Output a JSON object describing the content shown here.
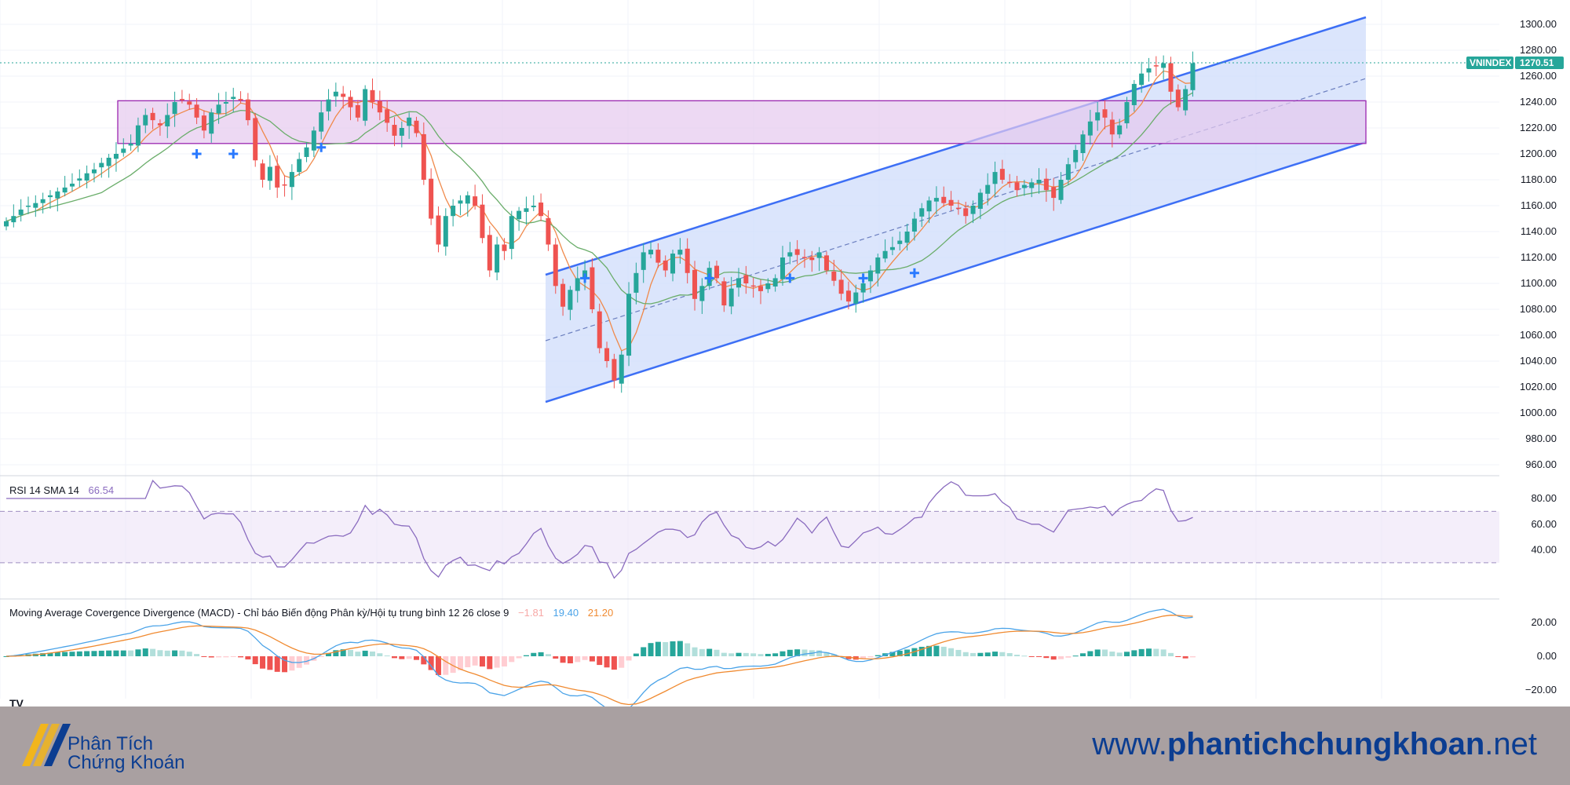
{
  "symbol": "VNINDEX",
  "last_price": "1270.51",
  "colors": {
    "up": "#26a69a",
    "down": "#ef5350",
    "ma_fast": "#f0894a",
    "ma_slow": "#6aad6a",
    "channel_line": "#3d6ff5",
    "channel_fill": "#cfdcfb",
    "zone_fill": "#e6c9ee",
    "zone_border": "#9b27b0",
    "rsi_line": "#8a6bbf",
    "macd_line": "#4aa3e8",
    "signal_line": "#f08a30",
    "footer_bg": "#a9a0a1",
    "brand": "#0b3d91"
  },
  "rsi": {
    "label": "RSI 14 SMA 14",
    "value": "66.54",
    "ticks": [
      "80.00",
      "60.00",
      "40.00"
    ]
  },
  "macd": {
    "label": "Moving Average Covergence Divergence (MACD) - Chỉ báo Biến động Phân kỳ/Hội tụ trung bình 12 26 close 9",
    "hist_value": "−1.81",
    "macd_value": "19.40",
    "signal_value": "21.20",
    "ticks": [
      "20.00",
      "0.00",
      "−20.00"
    ]
  },
  "price_ticks": [
    "1300.00",
    "1280.00",
    "1260.00",
    "1240.00",
    "1220.00",
    "1200.00",
    "1180.00",
    "1160.00",
    "1140.00",
    "1120.00",
    "1100.00",
    "1080.00",
    "1060.00",
    "1040.00",
    "1020.00",
    "1000.00",
    "980.00",
    "960.00"
  ],
  "footer": {
    "brand_line1": "Phân Tích",
    "brand_line2": "Chứng Khoán",
    "url_prefix": "www.",
    "url_bold": "phantichchungkhoan",
    "url_suffix": ".net"
  },
  "chart_data": {
    "type": "candlestick",
    "ylim": [
      955,
      1320
    ],
    "closes": [
      1148,
      1152,
      1157,
      1160,
      1162,
      1165,
      1168,
      1171,
      1174,
      1177,
      1181,
      1185,
      1188,
      1193,
      1197,
      1200,
      1204,
      1208,
      1222,
      1230,
      1226,
      1222,
      1230,
      1240,
      1242,
      1238,
      1228,
      1218,
      1232,
      1238,
      1240,
      1244,
      1242,
      1226,
      1195,
      1180,
      1190,
      1174,
      1176,
      1186,
      1196,
      1205,
      1218,
      1232,
      1242,
      1248,
      1244,
      1236,
      1228,
      1250,
      1240,
      1232,
      1224,
      1214,
      1220,
      1228,
      1216,
      1180,
      1150,
      1130,
      1152,
      1160,
      1164,
      1168,
      1160,
      1135,
      1110,
      1130,
      1125,
      1152,
      1156,
      1158,
      1160,
      1152,
      1130,
      1098,
      1082,
      1095,
      1104,
      1110,
      1080,
      1050,
      1040,
      1025,
      1045,
      1092,
      1108,
      1124,
      1126,
      1116,
      1110,
      1123,
      1126,
      1108,
      1088,
      1098,
      1112,
      1104,
      1083,
      1096,
      1104,
      1100,
      1098,
      1094,
      1100,
      1104,
      1120,
      1124,
      1122,
      1120,
      1118,
      1124,
      1110,
      1102,
      1092,
      1086,
      1093,
      1100,
      1110,
      1120,
      1125,
      1128,
      1133,
      1140,
      1150,
      1158,
      1164,
      1166,
      1162,
      1160,
      1158,
      1152,
      1160,
      1170,
      1176,
      1186,
      1180,
      1178,
      1172,
      1176,
      1178,
      1180,
      1172,
      1166,
      1180,
      1192,
      1203,
      1215,
      1225,
      1232,
      1228,
      1215,
      1222,
      1240,
      1254,
      1262,
      1266,
      1268,
      1270,
      1248,
      1236,
      1250,
      1270
    ]
  }
}
